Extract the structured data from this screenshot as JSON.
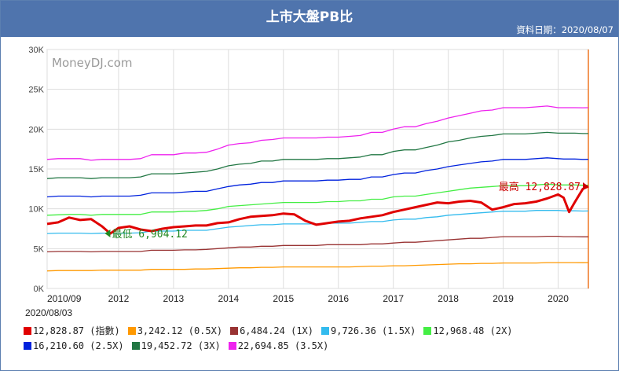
{
  "header": {
    "title": "上市大盤PB比",
    "date_line": "資料日期：2020/08/07"
  },
  "watermark": "MoneyDJ.com",
  "legend_date": "2020/08/03",
  "chart_data": {
    "type": "line",
    "title": "上市大盤PB比",
    "xlabel": "",
    "ylabel": "",
    "x_ticks": [
      "2010/09",
      "2012",
      "2013",
      "2014",
      "2015",
      "2016",
      "2017",
      "2018",
      "2019",
      "2020"
    ],
    "x_tick_pos": [
      2010.7,
      2012.0,
      2013.0,
      2014.0,
      2015.0,
      2016.0,
      2017.0,
      2018.0,
      2019.0,
      2020.0
    ],
    "xlim": [
      2010.7,
      2020.55
    ],
    "ylim": [
      0,
      30000
    ],
    "y_ticks": [
      "0K",
      "5K",
      "10K",
      "15K",
      "20K",
      "25K",
      "30K"
    ],
    "y_tick_values": [
      0,
      5000,
      10000,
      15000,
      20000,
      25000,
      30000
    ],
    "grid": true,
    "legend_position": "bottom",
    "x": [
      2010.7,
      2010.9,
      2011.1,
      2011.3,
      2011.5,
      2011.7,
      2011.85,
      2012.0,
      2012.2,
      2012.4,
      2012.6,
      2012.8,
      2013.0,
      2013.2,
      2013.4,
      2013.6,
      2013.8,
      2014.0,
      2014.2,
      2014.4,
      2014.6,
      2014.8,
      2015.0,
      2015.2,
      2015.4,
      2015.6,
      2015.8,
      2016.0,
      2016.2,
      2016.4,
      2016.6,
      2016.8,
      2017.0,
      2017.2,
      2017.4,
      2017.6,
      2017.8,
      2018.0,
      2018.2,
      2018.4,
      2018.6,
      2018.8,
      2019.0,
      2019.2,
      2019.4,
      2019.6,
      2019.8,
      2020.0,
      2020.1,
      2020.2,
      2020.3,
      2020.45,
      2020.55
    ],
    "series": [
      {
        "name": "12,828.87 (指數)",
        "color": "#e00000",
        "values": [
          8100,
          8300,
          8900,
          8600,
          8700,
          7800,
          6900,
          7600,
          7800,
          7400,
          7200,
          7500,
          7700,
          7800,
          7900,
          7900,
          8200,
          8300,
          8700,
          9000,
          9100,
          9200,
          9400,
          9300,
          8500,
          8000,
          8200,
          8400,
          8500,
          8800,
          9000,
          9200,
          9600,
          9900,
          10200,
          10500,
          10800,
          10700,
          10900,
          11000,
          10800,
          9900,
          10200,
          10600,
          10700,
          10900,
          11300,
          11800,
          11400,
          9600,
          10800,
          12500,
          12829
        ]
      },
      {
        "name": "3,242.12 (0.5X)",
        "color": "#ff9900",
        "values": [
          2200,
          2250,
          2250,
          2250,
          2250,
          2300,
          2300,
          2300,
          2300,
          2300,
          2400,
          2400,
          2400,
          2400,
          2450,
          2450,
          2500,
          2550,
          2600,
          2600,
          2650,
          2650,
          2700,
          2700,
          2700,
          2700,
          2700,
          2700,
          2700,
          2750,
          2800,
          2800,
          2850,
          2850,
          2900,
          2950,
          3000,
          3050,
          3100,
          3100,
          3150,
          3150,
          3200,
          3200,
          3200,
          3200,
          3250,
          3250,
          3250,
          3250,
          3250,
          3240,
          3242
        ]
      },
      {
        "name": "6,484.24 (1X)",
        "color": "#993333",
        "values": [
          4600,
          4650,
          4650,
          4650,
          4600,
          4650,
          4650,
          4650,
          4650,
          4650,
          4800,
          4800,
          4800,
          4850,
          4850,
          4900,
          5000,
          5100,
          5200,
          5200,
          5300,
          5300,
          5400,
          5400,
          5400,
          5400,
          5500,
          5500,
          5500,
          5500,
          5600,
          5600,
          5700,
          5800,
          5800,
          5900,
          6000,
          6100,
          6200,
          6300,
          6300,
          6400,
          6500,
          6500,
          6500,
          6500,
          6550,
          6550,
          6500,
          6500,
          6500,
          6480,
          6484
        ]
      },
      {
        "name": "9,726.36 (1.5X)",
        "color": "#33bbee",
        "values": [
          6900,
          6950,
          6950,
          6950,
          6900,
          6950,
          6950,
          6950,
          6950,
          7000,
          7200,
          7200,
          7200,
          7300,
          7300,
          7300,
          7500,
          7700,
          7800,
          7900,
          8000,
          8000,
          8100,
          8100,
          8100,
          8100,
          8200,
          8200,
          8200,
          8300,
          8400,
          8400,
          8600,
          8700,
          8700,
          8900,
          9000,
          9200,
          9300,
          9400,
          9500,
          9600,
          9700,
          9700,
          9700,
          9800,
          9800,
          9800,
          9750,
          9750,
          9750,
          9720,
          9726
        ]
      },
      {
        "name": "12,968.48 (2X)",
        "color": "#44ee44",
        "values": [
          9200,
          9250,
          9300,
          9300,
          9200,
          9300,
          9300,
          9300,
          9300,
          9300,
          9600,
          9600,
          9600,
          9700,
          9700,
          9800,
          10000,
          10300,
          10400,
          10500,
          10600,
          10700,
          10800,
          10800,
          10800,
          10800,
          10900,
          10900,
          11000,
          11000,
          11200,
          11200,
          11500,
          11600,
          11600,
          11800,
          12000,
          12200,
          12400,
          12600,
          12700,
          12800,
          12900,
          12900,
          12900,
          13000,
          13100,
          13000,
          13000,
          13000,
          13000,
          12960,
          12968
        ]
      },
      {
        "name": "16,210.60 (2.5X)",
        "color": "#0022dd",
        "values": [
          11500,
          11600,
          11600,
          11600,
          11500,
          11600,
          11600,
          11600,
          11600,
          11700,
          12000,
          12000,
          12000,
          12100,
          12200,
          12200,
          12500,
          12800,
          13000,
          13100,
          13300,
          13300,
          13500,
          13500,
          13500,
          13500,
          13600,
          13600,
          13700,
          13700,
          14000,
          14000,
          14300,
          14500,
          14500,
          14800,
          15000,
          15300,
          15500,
          15700,
          15900,
          16000,
          16200,
          16200,
          16200,
          16300,
          16400,
          16300,
          16250,
          16250,
          16250,
          16200,
          16211
        ]
      },
      {
        "name": "19,452.72 (3X)",
        "color": "#227744",
        "values": [
          13800,
          13900,
          13900,
          13900,
          13800,
          13900,
          13900,
          13900,
          13900,
          14000,
          14400,
          14400,
          14400,
          14500,
          14600,
          14700,
          15000,
          15400,
          15600,
          15700,
          16000,
          16000,
          16200,
          16200,
          16200,
          16200,
          16300,
          16300,
          16400,
          16500,
          16800,
          16800,
          17200,
          17400,
          17400,
          17700,
          18000,
          18400,
          18600,
          18900,
          19100,
          19200,
          19400,
          19400,
          19400,
          19500,
          19600,
          19500,
          19500,
          19500,
          19500,
          19450,
          19453
        ]
      },
      {
        "name": "22,694.85 (3.5X)",
        "color": "#ee22ee",
        "values": [
          16200,
          16300,
          16300,
          16300,
          16100,
          16200,
          16200,
          16200,
          16200,
          16300,
          16800,
          16800,
          16800,
          17000,
          17000,
          17100,
          17500,
          18000,
          18200,
          18300,
          18600,
          18700,
          18900,
          18900,
          18900,
          18900,
          19000,
          19000,
          19100,
          19200,
          19600,
          19600,
          20000,
          20300,
          20300,
          20700,
          21000,
          21400,
          21700,
          22000,
          22300,
          22400,
          22700,
          22700,
          22700,
          22800,
          22900,
          22700,
          22700,
          22700,
          22700,
          22690,
          22695
        ]
      }
    ],
    "annotations": {
      "high_label": "最高 12,828.87",
      "high_x": 2020.55,
      "high_y": 12829,
      "low_label": "最低 6,904.12",
      "low_x": 2011.85,
      "low_y": 6904
    }
  }
}
